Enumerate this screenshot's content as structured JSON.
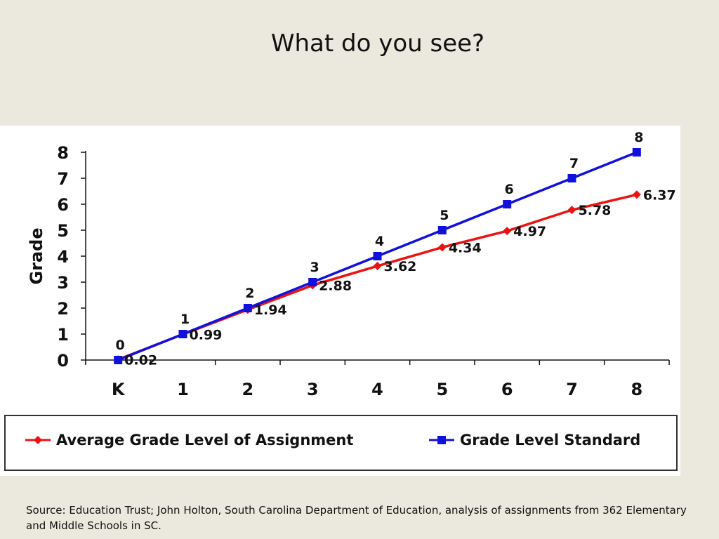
{
  "slide": {
    "title": "What do you see?",
    "source": "Source:  Education Trust; John Holton, South Carolina Department of Education, analysis of assignments from 362 Elementary and Middle Schools in SC."
  },
  "chart_data": {
    "type": "line",
    "categories": [
      "K",
      "1",
      "2",
      "3",
      "4",
      "5",
      "6",
      "7",
      "8"
    ],
    "ylabel": "Grade",
    "xlabel": "",
    "ylim": [
      0,
      8
    ],
    "yticks": [
      "0",
      "1",
      "2",
      "3",
      "4",
      "5",
      "6",
      "7",
      "8"
    ],
    "grid": false,
    "legend_position": "bottom",
    "series": [
      {
        "name": "Average Grade Level of Assignment",
        "values": [
          0.02,
          0.99,
          1.94,
          2.88,
          3.62,
          4.34,
          4.97,
          5.78,
          6.37
        ],
        "labels": [
          "0.02",
          "0.99",
          "1.94",
          "2.88",
          "3.62",
          "4.34",
          "4.97",
          "5.78",
          "6.37"
        ],
        "color": "#ee1111",
        "marker": "diamond"
      },
      {
        "name": "Grade Level Standard",
        "values": [
          0,
          1,
          2,
          3,
          4,
          5,
          6,
          7,
          8
        ],
        "labels": [
          "0",
          "1",
          "2",
          "3",
          "4",
          "5",
          "6",
          "7",
          "8"
        ],
        "color": "#1111dd",
        "marker": "square"
      }
    ]
  }
}
